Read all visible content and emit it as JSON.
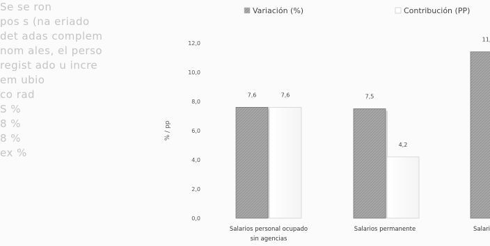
{
  "background_text": [
    "Se        se  ron",
    "pos  s  (na  eriado",
    "det  adas complem",
    "nom  ales,  el perso",
    "regist  ado  u  incre",
    "em      ubio    ",
    "co      rad      ",
    "S        %         ",
    "8          %         ",
    "8          %         ",
    "ex          %        "
  ],
  "chart_data": {
    "type": "bar",
    "title": "",
    "xlabel": "",
    "ylabel": "% / pp",
    "ylim": [
      0,
      12
    ],
    "yticks": [
      "0,0",
      "2,0",
      "4,0",
      "6,0",
      "8,0",
      "10,0",
      "12,0"
    ],
    "grid": false,
    "legend_position": "top",
    "categories": [
      "Salarios personal ocupado sin agencias",
      "Salarios permanente",
      "Salarios t"
    ],
    "series": [
      {
        "name": "Variación (%)",
        "values": [
          7.6,
          7.5,
          11.4
        ],
        "labels": [
          "7,6",
          "7,5",
          "11,"
        ],
        "color": "#a8a8a8"
      },
      {
        "name": "Contribución (PP)",
        "values": [
          7.6,
          4.2,
          null
        ],
        "labels": [
          "7,6",
          "4,2",
          ""
        ],
        "color": "#f4f4f4"
      }
    ]
  }
}
